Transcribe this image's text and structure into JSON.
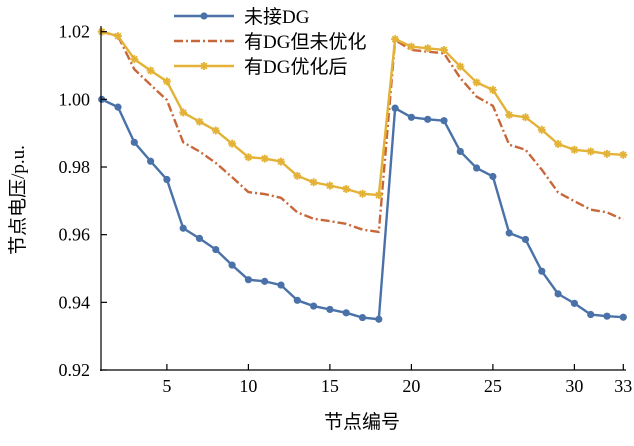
{
  "chart_data": {
    "type": "line",
    "xlabel": "节点编号",
    "ylabel": "节点电压/p.u.",
    "xlim": [
      1,
      33
    ],
    "ylim": [
      0.92,
      1.02
    ],
    "xticks": [
      5,
      10,
      15,
      20,
      25,
      30,
      33
    ],
    "yticks": [
      "0.92",
      "0.94",
      "0.96",
      "0.98",
      "1.00",
      "1.02"
    ],
    "grid": false,
    "legend_position": "top-left",
    "x": [
      1,
      2,
      3,
      4,
      5,
      6,
      7,
      8,
      9,
      10,
      11,
      12,
      13,
      14,
      15,
      16,
      17,
      18,
      19,
      20,
      21,
      22,
      23,
      24,
      25,
      26,
      27,
      28,
      29,
      30,
      31,
      32,
      33
    ],
    "series": [
      {
        "name": "未接DG",
        "color": "#4a72a8",
        "style": "solid",
        "marker": "circle",
        "values": [
          1.0,
          0.9977,
          0.9873,
          0.9817,
          0.9763,
          0.9619,
          0.9589,
          0.9556,
          0.951,
          0.9467,
          0.9462,
          0.9451,
          0.9406,
          0.9389,
          0.9379,
          0.9369,
          0.9355,
          0.935,
          0.9974,
          0.9947,
          0.9941,
          0.9937,
          0.9846,
          0.9797,
          0.9772,
          0.9605,
          0.9586,
          0.9492,
          0.9425,
          0.9397,
          0.9364,
          0.9359,
          0.9356
        ]
      },
      {
        "name": "有DG但未优化",
        "color": "#c8683a",
        "style": "dashdot",
        "marker": "none",
        "values": [
          1.02,
          1.0187,
          1.0089,
          1.0043,
          0.9998,
          0.9873,
          0.9846,
          0.9812,
          0.977,
          0.9726,
          0.972,
          0.9709,
          0.9666,
          0.9647,
          0.964,
          0.9632,
          0.9615,
          0.9608,
          1.0175,
          1.0146,
          1.0141,
          1.0136,
          1.0063,
          1.0008,
          0.9981,
          0.9866,
          0.9851,
          0.9792,
          0.9725,
          0.9699,
          0.9674,
          0.9666,
          0.9644
        ]
      },
      {
        "name": "有DG优化后",
        "color": "#e3b236",
        "style": "solid",
        "marker": "star",
        "values": [
          1.02,
          1.0187,
          1.0119,
          1.0085,
          1.0053,
          0.9961,
          0.9934,
          0.9908,
          0.9869,
          0.9829,
          0.9825,
          0.9816,
          0.9774,
          0.9755,
          0.9745,
          0.9735,
          0.9721,
          0.9717,
          1.0178,
          1.0156,
          1.0151,
          1.0146,
          1.0097,
          1.005,
          1.0028,
          0.9954,
          0.9947,
          0.991,
          0.9868,
          0.9851,
          0.9846,
          0.9839,
          0.9836
        ]
      }
    ]
  }
}
